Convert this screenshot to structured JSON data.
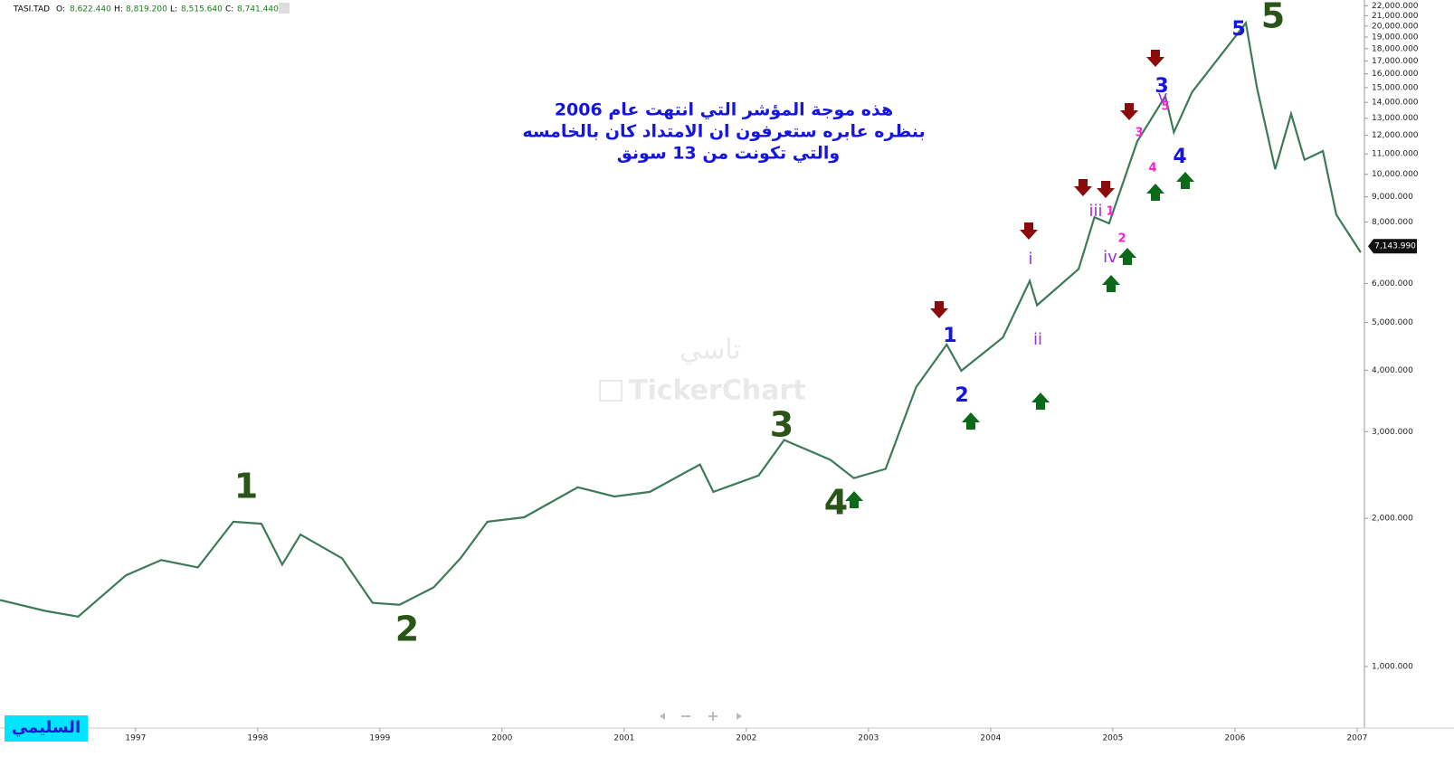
{
  "chart_data": {
    "type": "line",
    "header": {
      "symbol": "TASI.TAD",
      "ohlc": [
        {
          "name": "O:",
          "label": "8,622.440"
        },
        {
          "name": "H:",
          "label": "8,819.200"
        },
        {
          "name": "L:",
          "label": "8,515.640"
        },
        {
          "name": "C:",
          "label": "8,741.440"
        }
      ]
    },
    "note": [
      "هذه موجة المؤشر التي انتهت  عام 2006",
      "بنظره عابره ستعرفون ان الامتداد كان بالخامسه",
      "والتي تكونت  من 13 سونق"
    ],
    "watermark": [
      "تاسي",
      "TickerChart"
    ],
    "author": "السليمي",
    "log_scale": true,
    "color": "#3d7a5a",
    "x": [
      1995.89,
      1996.26,
      1996.53,
      1996.92,
      1997.21,
      1997.51,
      1997.8,
      1998.03,
      1998.2,
      1998.35,
      1998.69,
      1998.94,
      1999.16,
      1999.44,
      1999.66,
      1999.88,
      2000.18,
      2000.62,
      2000.92,
      2001.21,
      2001.62,
      2001.73,
      2002.1,
      2002.31,
      2002.69,
      2002.88,
      2003.14,
      2003.39,
      2003.64,
      2003.76,
      2004.1,
      2004.32,
      2004.38,
      2004.72,
      2004.85,
      2004.97,
      2005.2,
      2005.43,
      2005.5,
      2005.65,
      2006.09,
      2006.18,
      2006.33,
      2006.46,
      2006.57,
      2006.72,
      2006.83,
      2007.03
    ],
    "values": [
      1365,
      1297,
      1263,
      1532,
      1645,
      1590,
      1969,
      1950,
      1611,
      1854,
      1659,
      1347,
      1335,
      1448,
      1659,
      1969,
      2010,
      2313,
      2215,
      2264,
      2573,
      2264,
      2444,
      2886,
      2628,
      2414,
      2520,
      3694,
      4510,
      3990,
      4660,
      6070,
      5420,
      6420,
      8180,
      7950,
      11660,
      14400,
      12170,
      14700,
      20300,
      15000,
      10240,
      13270,
      10700,
      11150,
      8280,
      6940
    ],
    "last_price": {
      "value": 7143.99,
      "label": "7,143.990"
    },
    "xlim": [
      1995.89,
      2007.06
    ],
    "xticks": [
      1997,
      1998,
      1999,
      2000,
      2001,
      2002,
      2003,
      2004,
      2005,
      2006,
      2007
    ],
    "ylim": [
      750,
      22600
    ],
    "yticks": [
      {
        "value": 22000,
        "label": "22,000.000"
      },
      {
        "value": 21000,
        "label": "21,000.000"
      },
      {
        "value": 20000,
        "label": "20,000.000"
      },
      {
        "value": 19000,
        "label": "19,000.000"
      },
      {
        "value": 18000,
        "label": "18,000.000"
      },
      {
        "value": 17000,
        "label": "17,000.000"
      },
      {
        "value": 16000,
        "label": "16,000.000"
      },
      {
        "value": 15000,
        "label": "15,000.000"
      },
      {
        "value": 14000,
        "label": "14,000.000"
      },
      {
        "value": 13000,
        "label": "13,000.000"
      },
      {
        "value": 12000,
        "label": "12,000.000"
      },
      {
        "value": 11000,
        "label": "11,000.000"
      },
      {
        "value": 10000,
        "label": "10,000.000"
      },
      {
        "value": 9000,
        "label": "9,000.000"
      },
      {
        "value": 8000,
        "label": "8,000.000"
      },
      {
        "value": 6000,
        "label": "6,000.000"
      },
      {
        "value": 5000,
        "label": "5,000.000"
      },
      {
        "value": 4000,
        "label": "4,000.000"
      },
      {
        "value": 3000,
        "label": "3,000.000"
      },
      {
        "value": 2000,
        "label": "2,000.000"
      },
      {
        "value": 1000,
        "label": "1,000.000"
      }
    ],
    "annotations": [
      {
        "text": "1",
        "color": "#2a5418"
      },
      {
        "text": "2",
        "color": "#2a5418"
      },
      {
        "text": "3",
        "color": "#2a5418"
      },
      {
        "text": "4",
        "color": "#2a5418"
      },
      {
        "text": "5",
        "color": "#2a5418"
      },
      {
        "text": "1",
        "color": "#1414e6"
      },
      {
        "text": "2",
        "color": "#1414e6"
      },
      {
        "text": "3",
        "color": "#1414e6"
      },
      {
        "text": "4",
        "color": "#1414e6"
      },
      {
        "text": "5",
        "color": "#1414e6"
      },
      {
        "text": "i",
        "color": "#9b30d9"
      },
      {
        "text": "ii",
        "color": "#9b30d9"
      },
      {
        "text": "iii",
        "color": "#9b30d9"
      },
      {
        "text": "iv",
        "color": "#9b30d9"
      },
      {
        "text": "v",
        "color": "#9b30d9"
      },
      {
        "text": "1",
        "color": "#ff1fd2"
      },
      {
        "text": "2",
        "color": "#ff1fd2"
      },
      {
        "text": "3",
        "color": "#ff1fd2"
      },
      {
        "text": "4",
        "color": "#ff1fd2"
      },
      {
        "text": "5",
        "color": "#ff1fd2"
      }
    ]
  }
}
